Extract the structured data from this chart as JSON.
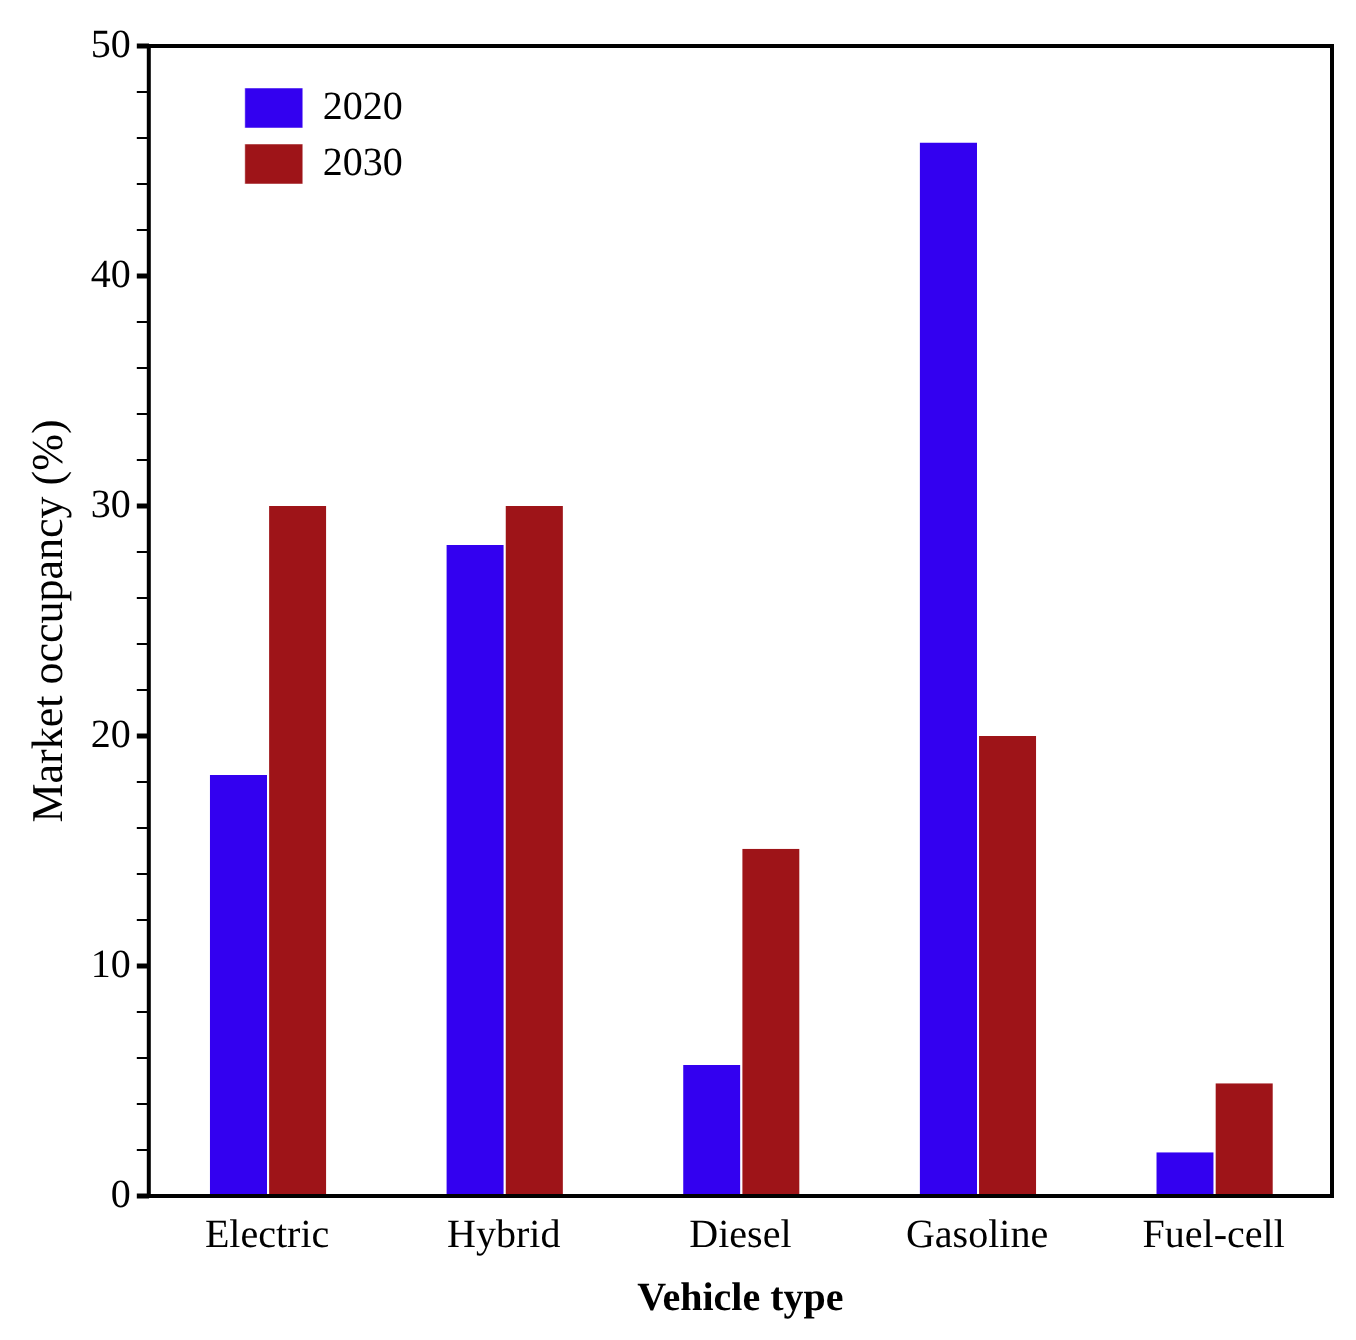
{
  "chart_data": {
    "type": "bar",
    "xlabel": "Vehicle type",
    "ylabel": "Market occupancy (%)",
    "categories": [
      "Electric",
      "Hybrid",
      "Diesel",
      "Gasoline",
      "Fuel-cell"
    ],
    "series": [
      {
        "name": "2020",
        "color": "#3300f0",
        "values": [
          18.3,
          28.3,
          5.7,
          45.8,
          1.9
        ]
      },
      {
        "name": "2030",
        "color": "#9e1418",
        "values": [
          30,
          30,
          15.1,
          20,
          4.9
        ]
      }
    ],
    "ylim": [
      0,
      50
    ],
    "yticks": [
      0,
      {
        "value": 2,
        "label": null
      },
      {
        "value": 4,
        "label": null
      },
      {
        "value": 6,
        "label": null
      },
      {
        "value": 8,
        "label": null
      },
      10,
      {
        "value": 12,
        "label": null
      },
      {
        "value": 14,
        "label": null
      },
      {
        "value": 16,
        "label": null
      },
      {
        "value": 18,
        "label": null
      },
      20,
      {
        "value": 22,
        "label": null
      },
      {
        "value": 24,
        "label": null
      },
      {
        "value": 26,
        "label": null
      },
      {
        "value": 28,
        "label": null
      },
      30,
      {
        "value": 32,
        "label": null
      },
      {
        "value": 34,
        "label": null
      },
      {
        "value": 36,
        "label": null
      },
      {
        "value": 38,
        "label": null
      },
      40,
      {
        "value": 42,
        "label": null
      },
      {
        "value": 44,
        "label": null
      },
      {
        "value": 46,
        "label": null
      },
      {
        "value": 48,
        "label": null
      },
      50
    ],
    "grid": false,
    "legend": "top left"
  }
}
